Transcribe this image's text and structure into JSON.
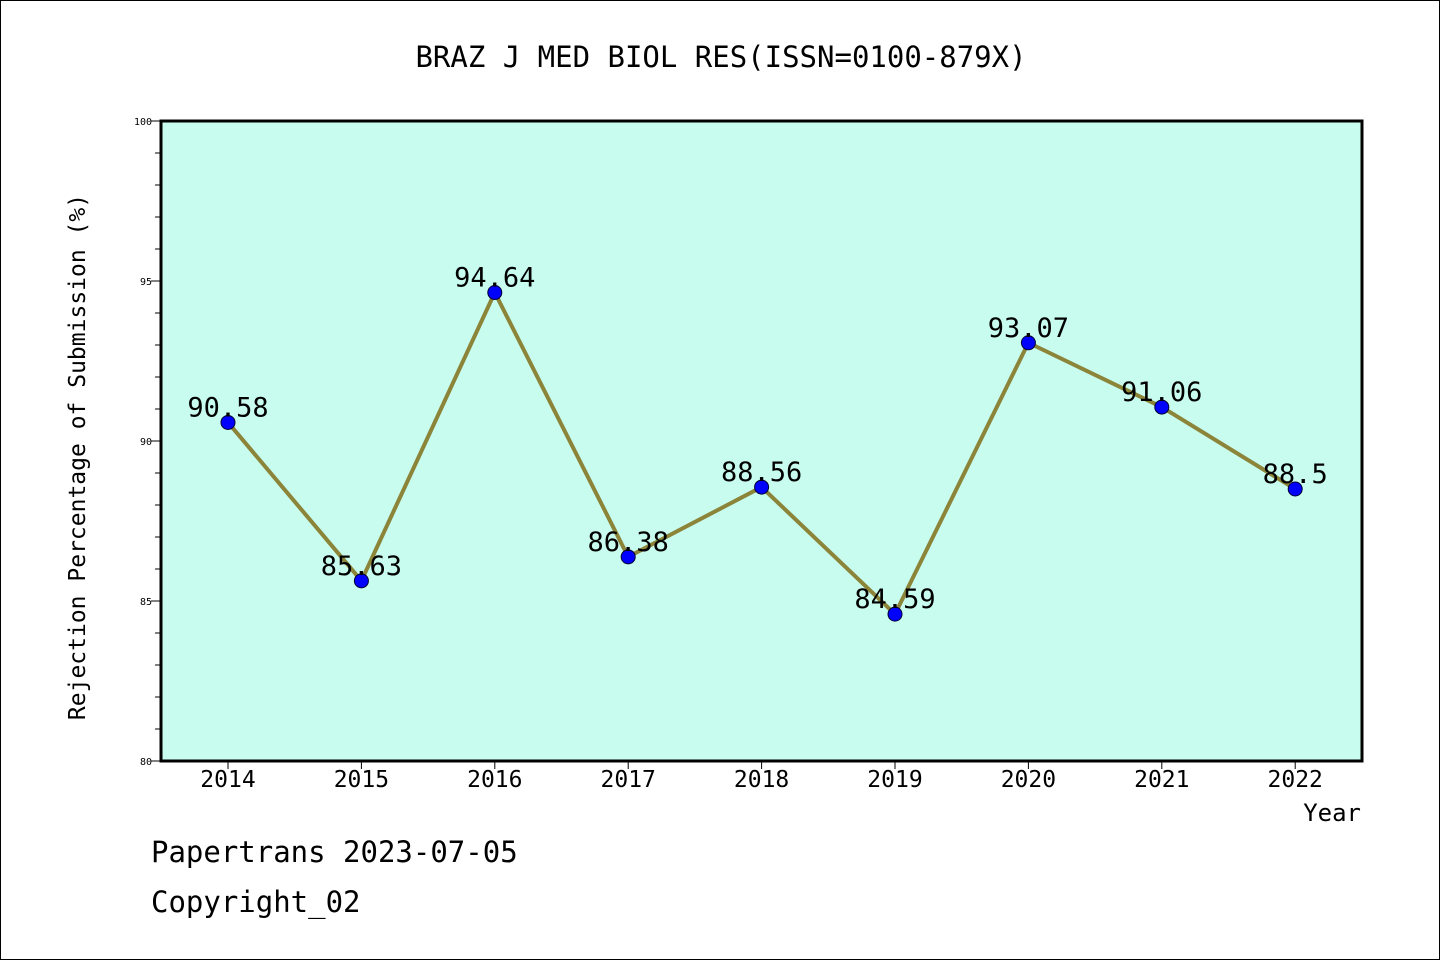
{
  "chart_data": {
    "type": "line",
    "title": "BRAZ J MED BIOL RES(ISSN=0100-879X)",
    "xlabel": "Year",
    "ylabel": "Rejection Percentage of Submission (%)",
    "categories": [
      "2014",
      "2015",
      "2016",
      "2017",
      "2018",
      "2019",
      "2020",
      "2021",
      "2022"
    ],
    "values": [
      90.58,
      85.63,
      94.64,
      86.38,
      88.56,
      84.59,
      93.07,
      91.06,
      88.5
    ],
    "data_labels": [
      "90.58",
      "85.63",
      "94.64",
      "86.38",
      "88.56",
      "84.59",
      "93.07",
      "91.06",
      "88.5"
    ],
    "ylim": [
      80,
      100
    ],
    "y_ticks": [
      80,
      85,
      90,
      95,
      100
    ],
    "grid": false,
    "colors": {
      "plot_background": "#c8fcee",
      "line": "#8b8439",
      "marker": "#0000ff"
    }
  },
  "footer": {
    "line1": "Papertrans 2023-07-05",
    "line2": "Copyright_02"
  }
}
